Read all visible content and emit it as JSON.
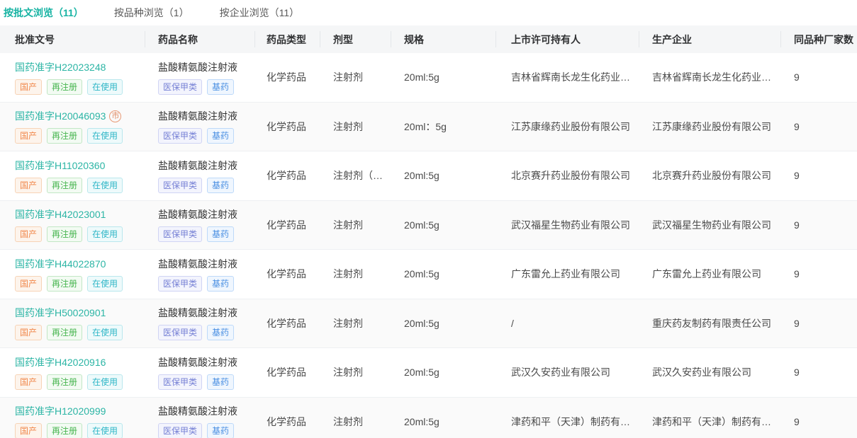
{
  "tabs": [
    {
      "label": "按批文浏览（11）",
      "active": true
    },
    {
      "label": "按品种浏览（1）",
      "active": false
    },
    {
      "label": "按企业浏览（11）",
      "active": false
    }
  ],
  "table": {
    "columns": [
      "批准文号",
      "药品名称",
      "药品类型",
      "剂型",
      "规格",
      "上市许可持有人",
      "生产企业",
      "同品种厂家数"
    ],
    "approval_tags": [
      "国产",
      "再注册",
      "在使用"
    ],
    "drug_tags": [
      "医保甲类",
      "基药"
    ],
    "rows": [
      {
        "approval_no": "国药准字H22023248",
        "approval_icon": "",
        "drug_name": "盐酸精氨酸注射液",
        "drug_type": "化学药品",
        "dosage_form": "注射剂",
        "spec": "20ml:5g",
        "holder": "吉林省辉南长龙生化药业…",
        "manufacturer": "吉林省辉南长龙生化药业…",
        "same_variety_count": "9"
      },
      {
        "approval_no": "国药准字H20046093",
        "approval_icon": "市",
        "drug_name": "盐酸精氨酸注射液",
        "drug_type": "化学药品",
        "dosage_form": "注射剂",
        "spec": "20ml：5g",
        "holder": "江苏康缘药业股份有限公司",
        "manufacturer": "江苏康缘药业股份有限公司",
        "same_variety_count": "9"
      },
      {
        "approval_no": "国药准字H11020360",
        "approval_icon": "",
        "drug_name": "盐酸精氨酸注射液",
        "drug_type": "化学药品",
        "dosage_form": "注射剂（…",
        "spec": "20ml:5g",
        "holder": "北京赛升药业股份有限公司",
        "manufacturer": "北京赛升药业股份有限公司",
        "same_variety_count": "9"
      },
      {
        "approval_no": "国药准字H42023001",
        "approval_icon": "",
        "drug_name": "盐酸精氨酸注射液",
        "drug_type": "化学药品",
        "dosage_form": "注射剂",
        "spec": "20ml:5g",
        "holder": "武汉福星生物药业有限公司",
        "manufacturer": "武汉福星生物药业有限公司",
        "same_variety_count": "9"
      },
      {
        "approval_no": "国药准字H44022870",
        "approval_icon": "",
        "drug_name": "盐酸精氨酸注射液",
        "drug_type": "化学药品",
        "dosage_form": "注射剂",
        "spec": "20ml:5g",
        "holder": "广东雷允上药业有限公司",
        "manufacturer": "广东雷允上药业有限公司",
        "same_variety_count": "9"
      },
      {
        "approval_no": "国药准字H50020901",
        "approval_icon": "",
        "drug_name": "盐酸精氨酸注射液",
        "drug_type": "化学药品",
        "dosage_form": "注射剂",
        "spec": "20ml:5g",
        "holder": "/",
        "manufacturer": "重庆药友制药有限责任公司",
        "same_variety_count": "9"
      },
      {
        "approval_no": "国药准字H42020916",
        "approval_icon": "",
        "drug_name": "盐酸精氨酸注射液",
        "drug_type": "化学药品",
        "dosage_form": "注射剂",
        "spec": "20ml:5g",
        "holder": "武汉久安药业有限公司",
        "manufacturer": "武汉久安药业有限公司",
        "same_variety_count": "9"
      },
      {
        "approval_no": "国药准字H12020999",
        "approval_icon": "",
        "drug_name": "盐酸精氨酸注射液",
        "drug_type": "化学药品",
        "dosage_form": "注射剂",
        "spec": "20ml:5g",
        "holder": "津药和平（天津）制药有…",
        "manufacturer": "津药和平（天津）制药有…",
        "same_variety_count": "9"
      }
    ]
  },
  "colors": {
    "accent_teal": "#17b3a3",
    "link_teal": "#2cb5a5",
    "tag_domestic_orange": "#f1894d",
    "tag_reregister_green": "#47b54f",
    "tag_inuse_cyan": "#2fb6c7",
    "tag_medicare_purple": "#7680d5",
    "tag_essential_blue": "#4a8fe2",
    "header_bg": "#f5f6f7",
    "striped_row_bg": "#fafafa"
  }
}
